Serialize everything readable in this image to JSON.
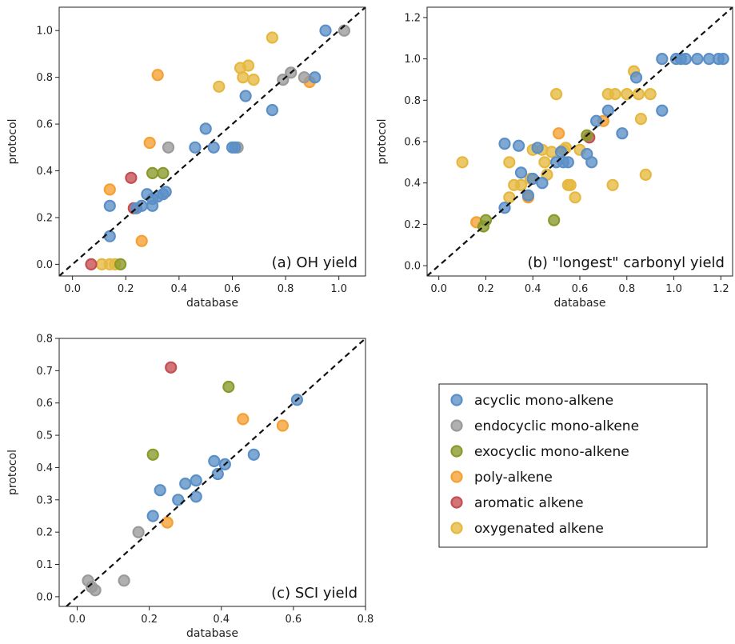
{
  "colors": {
    "acyclic mono-alkene": "#5b8fc7",
    "endocyclic mono-alkene": "#9a9a9a",
    "exocyclic mono-alkene": "#8a9a2a",
    "poly-alkene": "#f5a033",
    "aromatic alkene": "#c44e52",
    "oxygenated alkene": "#e6b840"
  },
  "legend": {
    "placement": "lower-right",
    "entries": [
      "acyclic mono-alkene",
      "endocyclic mono-alkene",
      "exocyclic mono-alkene",
      "poly-alkene",
      "aromatic alkene",
      "oxygenated alkene"
    ]
  },
  "chart_data": [
    {
      "type": "scatter",
      "title": "(a) OH yield",
      "xlabel": "database",
      "ylabel": "protocol",
      "xlim": [
        -0.05,
        1.1
      ],
      "ylim": [
        -0.05,
        1.1
      ],
      "xticks": [
        "0.0",
        "0.2",
        "0.4",
        "0.6",
        "0.8",
        "1.0"
      ],
      "yticks": [
        "0.0",
        "0.2",
        "0.4",
        "0.6",
        "0.8",
        "1.0"
      ],
      "diagonal": true,
      "series": [
        {
          "name": "oxygenated alkene",
          "points": [
            [
              0.11,
              0.0
            ],
            [
              0.14,
              0.0
            ],
            [
              0.16,
              0.0
            ],
            [
              0.55,
              0.76
            ],
            [
              0.63,
              0.84
            ],
            [
              0.64,
              0.8
            ],
            [
              0.66,
              0.85
            ],
            [
              0.68,
              0.79
            ],
            [
              0.75,
              0.97
            ]
          ]
        },
        {
          "name": "poly-alkene",
          "points": [
            [
              0.14,
              0.32
            ],
            [
              0.26,
              0.1
            ],
            [
              0.29,
              0.52
            ],
            [
              0.32,
              0.81
            ],
            [
              0.89,
              0.78
            ]
          ]
        },
        {
          "name": "aromatic alkene",
          "points": [
            [
              0.07,
              0.0
            ],
            [
              0.22,
              0.37
            ],
            [
              0.23,
              0.24
            ]
          ]
        },
        {
          "name": "exocyclic mono-alkene",
          "points": [
            [
              0.18,
              0.0
            ],
            [
              0.3,
              0.39
            ],
            [
              0.34,
              0.39
            ]
          ]
        },
        {
          "name": "endocyclic mono-alkene",
          "points": [
            [
              0.36,
              0.5
            ],
            [
              0.62,
              0.5
            ],
            [
              0.79,
              0.79
            ],
            [
              0.82,
              0.82
            ],
            [
              0.87,
              0.8
            ],
            [
              1.02,
              1.0
            ]
          ]
        },
        {
          "name": "acyclic mono-alkene",
          "points": [
            [
              0.14,
              0.25
            ],
            [
              0.14,
              0.12
            ],
            [
              0.24,
              0.24
            ],
            [
              0.26,
              0.25
            ],
            [
              0.28,
              0.3
            ],
            [
              0.3,
              0.25
            ],
            [
              0.3,
              0.28
            ],
            [
              0.32,
              0.29
            ],
            [
              0.34,
              0.3
            ],
            [
              0.35,
              0.31
            ],
            [
              0.46,
              0.5
            ],
            [
              0.5,
              0.58
            ],
            [
              0.53,
              0.5
            ],
            [
              0.6,
              0.5
            ],
            [
              0.61,
              0.5
            ],
            [
              0.65,
              0.72
            ],
            [
              0.75,
              0.66
            ],
            [
              0.91,
              0.8
            ],
            [
              0.95,
              1.0
            ]
          ]
        }
      ]
    },
    {
      "type": "scatter",
      "title": "(b) \"longest\" carbonyl yield",
      "xlabel": "database",
      "ylabel": "protocol",
      "xlim": [
        -0.05,
        1.25
      ],
      "ylim": [
        -0.05,
        1.25
      ],
      "xticks": [
        "0.0",
        "0.2",
        "0.4",
        "0.6",
        "0.8",
        "1.0",
        "1.2"
      ],
      "yticks": [
        "0.0",
        "0.2",
        "0.4",
        "0.6",
        "0.8",
        "1.0",
        "1.2"
      ],
      "diagonal": true,
      "series": [
        {
          "name": "oxygenated alkene",
          "points": [
            [
              0.1,
              0.5
            ],
            [
              0.3,
              0.33
            ],
            [
              0.3,
              0.5
            ],
            [
              0.32,
              0.39
            ],
            [
              0.35,
              0.39
            ],
            [
              0.39,
              0.42
            ],
            [
              0.4,
              0.56
            ],
            [
              0.44,
              0.56
            ],
            [
              0.45,
              0.5
            ],
            [
              0.46,
              0.44
            ],
            [
              0.48,
              0.55
            ],
            [
              0.5,
              0.83
            ],
            [
              0.53,
              0.56
            ],
            [
              0.54,
              0.57
            ],
            [
              0.55,
              0.39
            ],
            [
              0.56,
              0.39
            ],
            [
              0.58,
              0.33
            ],
            [
              0.6,
              0.56
            ],
            [
              0.72,
              0.83
            ],
            [
              0.74,
              0.39
            ],
            [
              0.75,
              0.83
            ],
            [
              0.8,
              0.83
            ],
            [
              0.83,
              0.94
            ],
            [
              0.85,
              0.83
            ],
            [
              0.86,
              0.71
            ],
            [
              0.88,
              0.44
            ],
            [
              0.9,
              0.83
            ]
          ]
        },
        {
          "name": "poly-alkene",
          "points": [
            [
              0.16,
              0.21
            ],
            [
              0.38,
              0.33
            ],
            [
              0.51,
              0.64
            ],
            [
              0.7,
              0.7
            ]
          ]
        },
        {
          "name": "aromatic alkene",
          "points": [
            [
              0.64,
              0.62
            ]
          ]
        },
        {
          "name": "exocyclic mono-alkene",
          "points": [
            [
              0.19,
              0.19
            ],
            [
              0.2,
              0.22
            ],
            [
              0.49,
              0.22
            ],
            [
              0.63,
              0.63
            ]
          ]
        },
        {
          "name": "acyclic mono-alkene",
          "points": [
            [
              0.28,
              0.28
            ],
            [
              0.28,
              0.59
            ],
            [
              0.34,
              0.58
            ],
            [
              0.35,
              0.45
            ],
            [
              0.38,
              0.34
            ],
            [
              0.4,
              0.42
            ],
            [
              0.42,
              0.57
            ],
            [
              0.44,
              0.4
            ],
            [
              0.5,
              0.5
            ],
            [
              0.52,
              0.55
            ],
            [
              0.53,
              0.5
            ],
            [
              0.55,
              0.5
            ],
            [
              0.63,
              0.54
            ],
            [
              0.65,
              0.5
            ],
            [
              0.67,
              0.7
            ],
            [
              0.72,
              0.75
            ],
            [
              0.78,
              0.64
            ],
            [
              0.84,
              0.91
            ],
            [
              0.95,
              1.0
            ],
            [
              0.95,
              0.75
            ],
            [
              1.01,
              1.0
            ],
            [
              1.03,
              1.0
            ],
            [
              1.05,
              1.0
            ],
            [
              1.1,
              1.0
            ],
            [
              1.15,
              1.0
            ],
            [
              1.19,
              1.0
            ],
            [
              1.21,
              1.0
            ]
          ]
        }
      ]
    },
    {
      "type": "scatter",
      "title": "(c) SCI yield",
      "xlabel": "database",
      "ylabel": "protocol",
      "xlim": [
        -0.05,
        0.8
      ],
      "ylim": [
        -0.03,
        0.8
      ],
      "xticks": [
        "0.0",
        "0.2",
        "0.4",
        "0.6",
        "0.8"
      ],
      "yticks": [
        "0.0",
        "0.1",
        "0.2",
        "0.3",
        "0.4",
        "0.5",
        "0.6",
        "0.7",
        "0.8"
      ],
      "diagonal": true,
      "series": [
        {
          "name": "endocyclic mono-alkene",
          "points": [
            [
              0.03,
              0.05
            ],
            [
              0.04,
              0.03
            ],
            [
              0.05,
              0.02
            ],
            [
              0.13,
              0.05
            ],
            [
              0.17,
              0.2
            ]
          ]
        },
        {
          "name": "poly-alkene",
          "points": [
            [
              0.25,
              0.23
            ],
            [
              0.46,
              0.55
            ],
            [
              0.57,
              0.53
            ]
          ]
        },
        {
          "name": "aromatic alkene",
          "points": [
            [
              0.26,
              0.71
            ]
          ]
        },
        {
          "name": "exocyclic mono-alkene",
          "points": [
            [
              0.21,
              0.44
            ],
            [
              0.42,
              0.65
            ]
          ]
        },
        {
          "name": "acyclic mono-alkene",
          "points": [
            [
              0.21,
              0.25
            ],
            [
              0.23,
              0.33
            ],
            [
              0.28,
              0.3
            ],
            [
              0.3,
              0.35
            ],
            [
              0.33,
              0.36
            ],
            [
              0.33,
              0.31
            ],
            [
              0.38,
              0.42
            ],
            [
              0.39,
              0.38
            ],
            [
              0.41,
              0.41
            ],
            [
              0.49,
              0.44
            ],
            [
              0.61,
              0.61
            ]
          ]
        }
      ]
    }
  ]
}
